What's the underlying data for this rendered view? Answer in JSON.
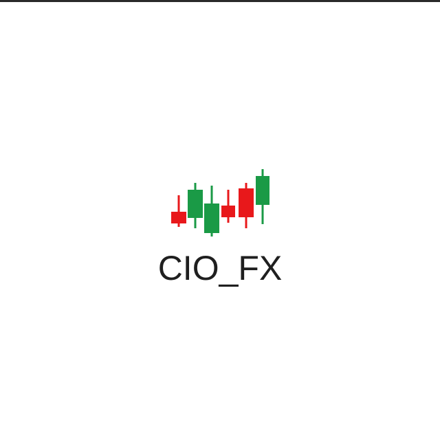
{
  "logo": {
    "wordmark": "CIO_FX",
    "icon": "candlestick-chart-icon",
    "colors": {
      "bullish": "#1a9a46",
      "bearish": "#e8181b",
      "text": "#1f1f1f",
      "background": "#ffffff"
    }
  }
}
